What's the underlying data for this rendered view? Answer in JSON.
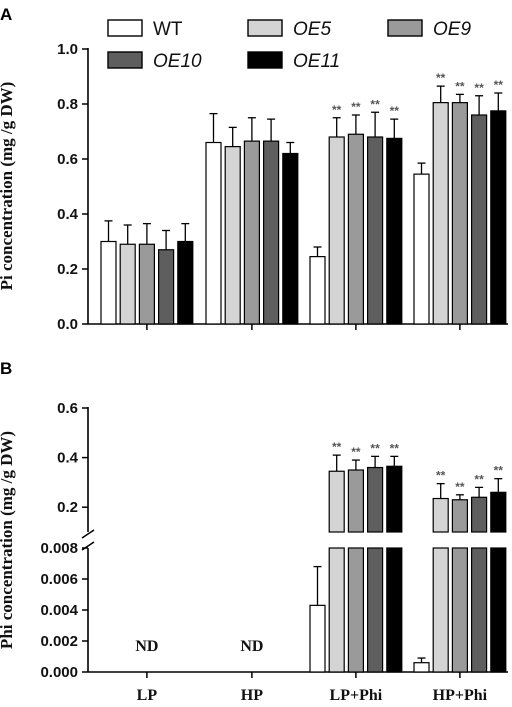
{
  "panels": {
    "a_label": "A",
    "b_label": "B"
  },
  "legend": [
    {
      "name": "WT",
      "italic": false
    },
    {
      "name": "OE5",
      "italic": true
    },
    {
      "name": "OE9",
      "italic": true
    },
    {
      "name": "OE10",
      "italic": true
    },
    {
      "name": "OE11",
      "italic": true
    }
  ],
  "colors": {
    "WT": "#ffffff",
    "OE5": "#d4d4d4",
    "OE9": "#9a9a9a",
    "OE10": "#5e5e5e",
    "OE11": "#000000",
    "stars": "#555555"
  },
  "nd_label": "ND",
  "chart_data": [
    {
      "type": "bar",
      "panel": "A",
      "ylabel": "Pi concentration (mg /g DW)",
      "categories": [
        "LP",
        "HP",
        "LP+Phi",
        "HP+Phi"
      ],
      "yticks": [
        "0.0",
        "0.2",
        "0.4",
        "0.6",
        "0.8",
        "1.0"
      ],
      "ylim": [
        0,
        1.0
      ],
      "series": [
        {
          "name": "WT",
          "values": [
            0.3,
            0.66,
            0.245,
            0.545
          ],
          "errors": [
            0.075,
            0.105,
            0.035,
            0.04
          ],
          "sig": [
            "",
            "",
            "",
            ""
          ]
        },
        {
          "name": "OE5",
          "values": [
            0.29,
            0.645,
            0.68,
            0.805
          ],
          "errors": [
            0.07,
            0.07,
            0.07,
            0.06
          ],
          "sig": [
            "",
            "",
            "**",
            "**"
          ]
        },
        {
          "name": "OE9",
          "values": [
            0.29,
            0.665,
            0.69,
            0.805
          ],
          "errors": [
            0.075,
            0.085,
            0.07,
            0.03
          ],
          "sig": [
            "",
            "",
            "**",
            "**"
          ]
        },
        {
          "name": "OE10",
          "values": [
            0.27,
            0.665,
            0.68,
            0.76
          ],
          "errors": [
            0.07,
            0.08,
            0.09,
            0.07
          ],
          "sig": [
            "",
            "",
            "**",
            "**"
          ]
        },
        {
          "name": "OE11",
          "values": [
            0.3,
            0.62,
            0.675,
            0.775
          ],
          "errors": [
            0.065,
            0.04,
            0.07,
            0.065
          ],
          "sig": [
            "",
            "",
            "**",
            "**"
          ]
        }
      ]
    },
    {
      "type": "bar",
      "panel": "B",
      "ylabel": "Phi concentration (mg /g DW)",
      "categories": [
        "LP",
        "HP",
        "LP+Phi",
        "HP+Phi"
      ],
      "broken_axis": true,
      "lower_yticks": [
        "0.000",
        "0.002",
        "0.004",
        "0.006",
        "0.008"
      ],
      "lower_ylim": [
        0,
        0.008
      ],
      "upper_yticks": [
        "0.2",
        "0.4",
        "0.6"
      ],
      "upper_ylim": [
        0.1,
        0.6
      ],
      "annotations": [
        "ND",
        "ND"
      ],
      "series": [
        {
          "name": "WT",
          "values": [
            null,
            null,
            0.0043,
            0.0006
          ],
          "errors": [
            0,
            0,
            0.0025,
            0.0003
          ],
          "sig": [
            "",
            "",
            "",
            ""
          ]
        },
        {
          "name": "OE5",
          "values": [
            null,
            null,
            0.345,
            0.235
          ],
          "errors": [
            0,
            0,
            0.065,
            0.06
          ],
          "sig": [
            "",
            "",
            "**",
            "**"
          ]
        },
        {
          "name": "OE9",
          "values": [
            null,
            null,
            0.35,
            0.23
          ],
          "errors": [
            0,
            0,
            0.04,
            0.02
          ],
          "sig": [
            "",
            "",
            "**",
            "**"
          ]
        },
        {
          "name": "OE10",
          "values": [
            null,
            null,
            0.36,
            0.24
          ],
          "errors": [
            0,
            0,
            0.045,
            0.04
          ],
          "sig": [
            "",
            "",
            "**",
            "**"
          ]
        },
        {
          "name": "OE11",
          "values": [
            null,
            null,
            0.365,
            0.26
          ],
          "errors": [
            0,
            0,
            0.04,
            0.055
          ],
          "sig": [
            "",
            "",
            "**",
            "**"
          ]
        }
      ]
    }
  ]
}
